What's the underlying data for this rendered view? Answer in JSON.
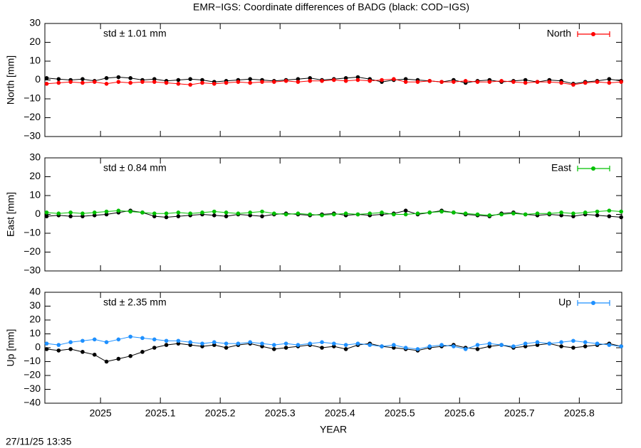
{
  "title": "EMR−IGS: Coordinate differences of BADG (black: COD−IGS)",
  "xlabel": "YEAR",
  "timestamp": "27/11/25 13:35",
  "chart_data": [
    {
      "type": "line",
      "ylabel": "North [mm]",
      "annotation": "std ± 1.01 mm",
      "x": [
        2024.91,
        2024.93,
        2024.95,
        2024.97,
        2024.99,
        2025.01,
        2025.03,
        2025.05,
        2025.07,
        2025.09,
        2025.11,
        2025.13,
        2025.15,
        2025.17,
        2025.19,
        2025.21,
        2025.23,
        2025.25,
        2025.27,
        2025.29,
        2025.31,
        2025.33,
        2025.35,
        2025.37,
        2025.39,
        2025.41,
        2025.43,
        2025.45,
        2025.47,
        2025.49,
        2025.51,
        2025.53,
        2025.55,
        2025.57,
        2025.59,
        2025.61,
        2025.63,
        2025.65,
        2025.67,
        2025.69,
        2025.71,
        2025.73,
        2025.75,
        2025.77,
        2025.79,
        2025.81,
        2025.83,
        2025.85,
        2025.87
      ],
      "xlim": [
        2024.907,
        2025.871
      ],
      "xticks": [
        2025,
        2025.1,
        2025.2,
        2025.3,
        2025.4,
        2025.5,
        2025.6,
        2025.7,
        2025.8
      ],
      "ylim": [
        -30,
        30
      ],
      "yticks": [
        {
          "value": -30,
          "label": "−30"
        },
        {
          "value": -20,
          "label": "−20"
        },
        {
          "value": -10,
          "label": "−10"
        },
        0,
        10,
        20,
        30
      ],
      "series": [
        {
          "color": "#000000",
          "values": [
            1,
            0.5,
            0,
            0.5,
            -0.5,
            1,
            1.5,
            1,
            0,
            0.5,
            -0.5,
            0,
            0.5,
            0,
            -1,
            -0.5,
            0,
            0.5,
            0,
            -0.5,
            0,
            0.5,
            1,
            0,
            0.5,
            1,
            1.5,
            0.5,
            -1,
            0,
            0.5,
            0,
            -0.5,
            -1,
            0,
            -1.5,
            -0.5,
            0,
            -1,
            -0.5,
            0,
            -1,
            0,
            -0.5,
            -2,
            -1,
            -0.5,
            0.5,
            -0.5
          ]
        },
        {
          "name": "North",
          "color": "#ff0000",
          "values": [
            -2,
            -1.5,
            -1,
            -1.5,
            -1,
            -2,
            -1,
            -1.5,
            -1,
            -1,
            -1.5,
            -2,
            -2.5,
            -1.5,
            -2,
            -1.5,
            -1,
            -1.5,
            -1,
            -1,
            -0.5,
            -1,
            -0.5,
            -0.5,
            0,
            -0.5,
            0,
            -0.5,
            0,
            0.5,
            -1,
            -1,
            -0.5,
            -1,
            -1,
            -0.5,
            -1,
            -1,
            -0.5,
            -1,
            -1.5,
            -1,
            -1,
            -1.5,
            -2.5,
            -1.5,
            -1,
            -1.5,
            -1
          ]
        }
      ]
    },
    {
      "type": "line",
      "ylabel": "East [mm]",
      "annotation": "std ± 0.84 mm",
      "x": [
        2024.91,
        2024.93,
        2024.95,
        2024.97,
        2024.99,
        2025.01,
        2025.03,
        2025.05,
        2025.07,
        2025.09,
        2025.11,
        2025.13,
        2025.15,
        2025.17,
        2025.19,
        2025.21,
        2025.23,
        2025.25,
        2025.27,
        2025.29,
        2025.31,
        2025.33,
        2025.35,
        2025.37,
        2025.39,
        2025.41,
        2025.43,
        2025.45,
        2025.47,
        2025.49,
        2025.51,
        2025.53,
        2025.55,
        2025.57,
        2025.59,
        2025.61,
        2025.63,
        2025.65,
        2025.67,
        2025.69,
        2025.71,
        2025.73,
        2025.75,
        2025.77,
        2025.79,
        2025.81,
        2025.83,
        2025.85,
        2025.87
      ],
      "xlim": [
        2024.907,
        2025.871
      ],
      "xticks": [
        2025,
        2025.1,
        2025.2,
        2025.3,
        2025.4,
        2025.5,
        2025.6,
        2025.7,
        2025.8
      ],
      "ylim": [
        -30,
        30
      ],
      "yticks": [
        {
          "value": -30,
          "label": "−30"
        },
        {
          "value": -20,
          "label": "−20"
        },
        {
          "value": -10,
          "label": "−10"
        },
        0,
        10,
        20,
        30
      ],
      "series": [
        {
          "color": "#000000",
          "values": [
            -1,
            -0.5,
            -1,
            -1,
            -0.5,
            0,
            1,
            2,
            1,
            -1,
            -1.5,
            -1,
            -0.5,
            0,
            -0.5,
            -1,
            0,
            -0.5,
            -1,
            0,
            0.5,
            0,
            -0.5,
            0,
            0.5,
            -0.5,
            0,
            -0.5,
            0,
            0.5,
            2,
            0,
            1,
            2,
            1,
            0,
            -0.5,
            -1,
            0.5,
            1,
            0,
            -0.5,
            0,
            -0.5,
            -1,
            0,
            -0.5,
            -1,
            -1.5
          ]
        },
        {
          "name": "East",
          "color": "#00c000",
          "values": [
            1,
            0.5,
            1,
            0.5,
            1,
            1.5,
            2,
            1.5,
            1,
            0.5,
            0.5,
            1,
            0.5,
            1,
            1.5,
            1,
            0.5,
            1,
            1.5,
            0.5,
            0,
            0.5,
            0,
            -0.5,
            0,
            0.5,
            0,
            0.5,
            1,
            0,
            0,
            0.5,
            1,
            1.5,
            1,
            0.5,
            0,
            -0.5,
            0,
            0.5,
            0,
            0.5,
            0.5,
            1,
            0.5,
            1,
            1.5,
            2,
            1.5
          ]
        }
      ]
    },
    {
      "type": "line",
      "ylabel": "Up [mm]",
      "annotation": "std ± 2.35 mm",
      "x": [
        2024.91,
        2024.93,
        2024.95,
        2024.97,
        2024.99,
        2025.01,
        2025.03,
        2025.05,
        2025.07,
        2025.09,
        2025.11,
        2025.13,
        2025.15,
        2025.17,
        2025.19,
        2025.21,
        2025.23,
        2025.25,
        2025.27,
        2025.29,
        2025.31,
        2025.33,
        2025.35,
        2025.37,
        2025.39,
        2025.41,
        2025.43,
        2025.45,
        2025.47,
        2025.49,
        2025.51,
        2025.53,
        2025.55,
        2025.57,
        2025.59,
        2025.61,
        2025.63,
        2025.65,
        2025.67,
        2025.69,
        2025.71,
        2025.73,
        2025.75,
        2025.77,
        2025.79,
        2025.81,
        2025.83,
        2025.85,
        2025.87
      ],
      "xlim": [
        2024.907,
        2025.871
      ],
      "xticks": [
        2025,
        2025.1,
        2025.2,
        2025.3,
        2025.4,
        2025.5,
        2025.6,
        2025.7,
        2025.8
      ],
      "ylim": [
        -40,
        40
      ],
      "yticks": [
        {
          "value": -40,
          "label": "−40"
        },
        {
          "value": -30,
          "label": "−30"
        },
        {
          "value": -20,
          "label": "−20"
        },
        {
          "value": -10,
          "label": "−10"
        },
        0,
        10,
        20,
        30,
        40
      ],
      "series": [
        {
          "color": "#000000",
          "values": [
            -1,
            -2,
            -1,
            -3,
            -5,
            -10,
            -8,
            -6,
            -3,
            0,
            2,
            3,
            2,
            1,
            2,
            0,
            2,
            3,
            1,
            -1,
            0,
            1,
            2,
            0,
            1,
            -1,
            2,
            3,
            1,
            0,
            -1,
            -2,
            0,
            1,
            2,
            0,
            -1,
            1,
            2,
            0,
            1,
            2,
            3,
            1,
            0,
            1,
            2,
            3,
            1
          ]
        },
        {
          "name": "Up",
          "color": "#1e90ff",
          "values": [
            3,
            2,
            4,
            5,
            6,
            4,
            6,
            8,
            7,
            6,
            5,
            5,
            4,
            3,
            4,
            3,
            3,
            4,
            3,
            2,
            3,
            2,
            3,
            4,
            3,
            2,
            3,
            2,
            1,
            2,
            0,
            -1,
            1,
            2,
            1,
            -1,
            2,
            3,
            2,
            1,
            3,
            4,
            3,
            4,
            5,
            4,
            3,
            2,
            1
          ]
        }
      ]
    }
  ]
}
